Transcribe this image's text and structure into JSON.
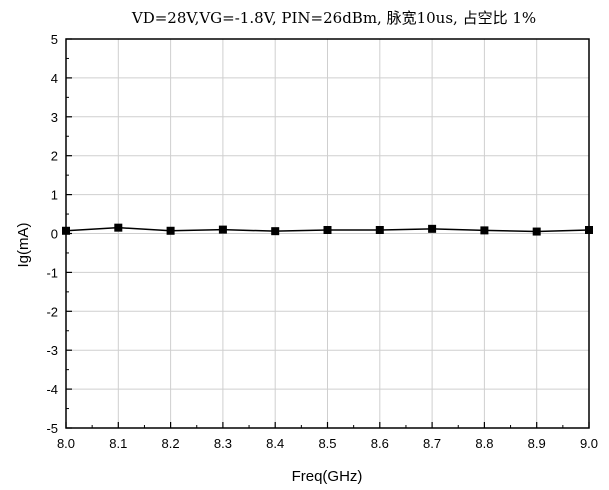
{
  "chart_data": {
    "type": "line",
    "title": "VD=28V,VG=-1.8V, PIN=26dBm, 脉宽10us, 占空比 1%",
    "xlabel": "Freq(GHz)",
    "ylabel": "Ig(mA)",
    "xlim": [
      8.0,
      9.0
    ],
    "ylim": [
      -5,
      5
    ],
    "x_ticks": [
      "8.0",
      "8.1",
      "8.2",
      "8.3",
      "8.4",
      "8.5",
      "8.6",
      "8.7",
      "8.8",
      "8.9",
      "9.0"
    ],
    "y_ticks": [
      "5",
      "4",
      "3",
      "2",
      "1",
      "0",
      "-1",
      "-2",
      "-3",
      "-4",
      "-5"
    ],
    "grid": true,
    "series": [
      {
        "x": [
          8.0,
          8.1,
          8.2,
          8.3,
          8.4,
          8.5,
          8.6,
          8.7,
          8.8,
          8.9,
          9.0
        ],
        "y": [
          0.07,
          0.15,
          0.07,
          0.1,
          0.06,
          0.09,
          0.09,
          0.12,
          0.08,
          0.05,
          0.09
        ],
        "marker": "square",
        "color": "#000000"
      }
    ]
  }
}
